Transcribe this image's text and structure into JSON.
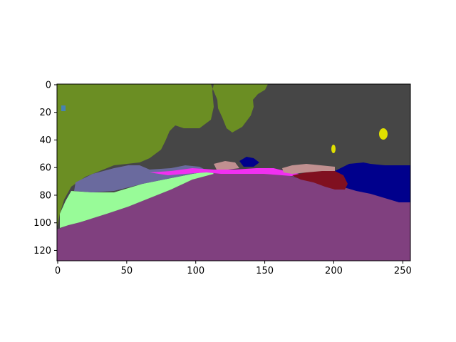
{
  "figure": {
    "kind": "segmentation-mask",
    "x_ticks": [
      "0",
      "50",
      "100",
      "150",
      "200",
      "250"
    ],
    "y_ticks": [
      "0",
      "20",
      "40",
      "60",
      "80",
      "100",
      "120"
    ],
    "x_range": [
      0,
      256
    ],
    "y_range": [
      0,
      128
    ],
    "y_inverted": true,
    "colors": {
      "olive": "#6b8e23",
      "dark_gray": "#464646",
      "purple": "#80407f",
      "light_green": "#98fb98",
      "slate": "#6a6a9e",
      "magenta": "#f030f0",
      "navy": "#00008c",
      "maroon": "#801020",
      "tan": "#c09090",
      "yellow": "#e0e000",
      "blue_gray": "#4682b4"
    }
  }
}
